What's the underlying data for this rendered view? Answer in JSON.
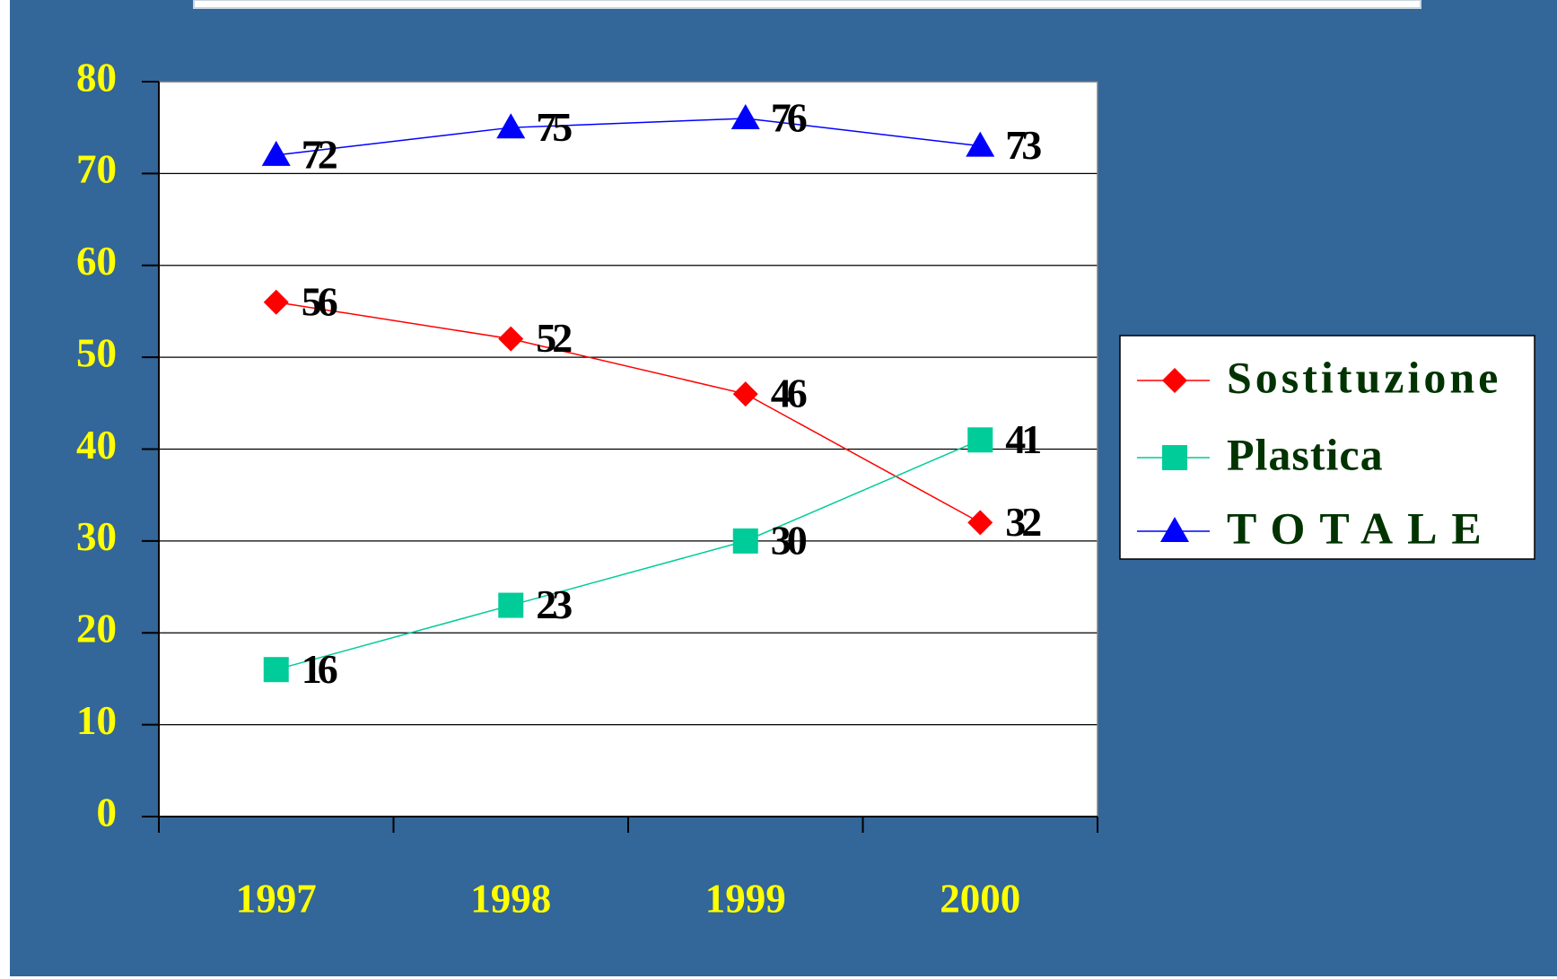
{
  "chart_data": {
    "type": "line",
    "categories": [
      "1997",
      "1998",
      "1999",
      "2000"
    ],
    "series": [
      {
        "name": "Sostituzione",
        "color": "#ff0000",
        "marker": "diamond",
        "values": [
          56,
          52,
          46,
          32
        ]
      },
      {
        "name": "Plastica",
        "color": "#00cc99",
        "marker": "square",
        "values": [
          16,
          23,
          30,
          41
        ]
      },
      {
        "name": "TOTALE",
        "color": "#0000ff",
        "marker": "triangle",
        "values": [
          72,
          75,
          76,
          73
        ]
      }
    ],
    "ylim": [
      0,
      80
    ],
    "yticks": [
      0,
      10,
      20,
      30,
      40,
      50,
      60,
      70,
      80
    ],
    "grid": true,
    "legend": "right"
  }
}
